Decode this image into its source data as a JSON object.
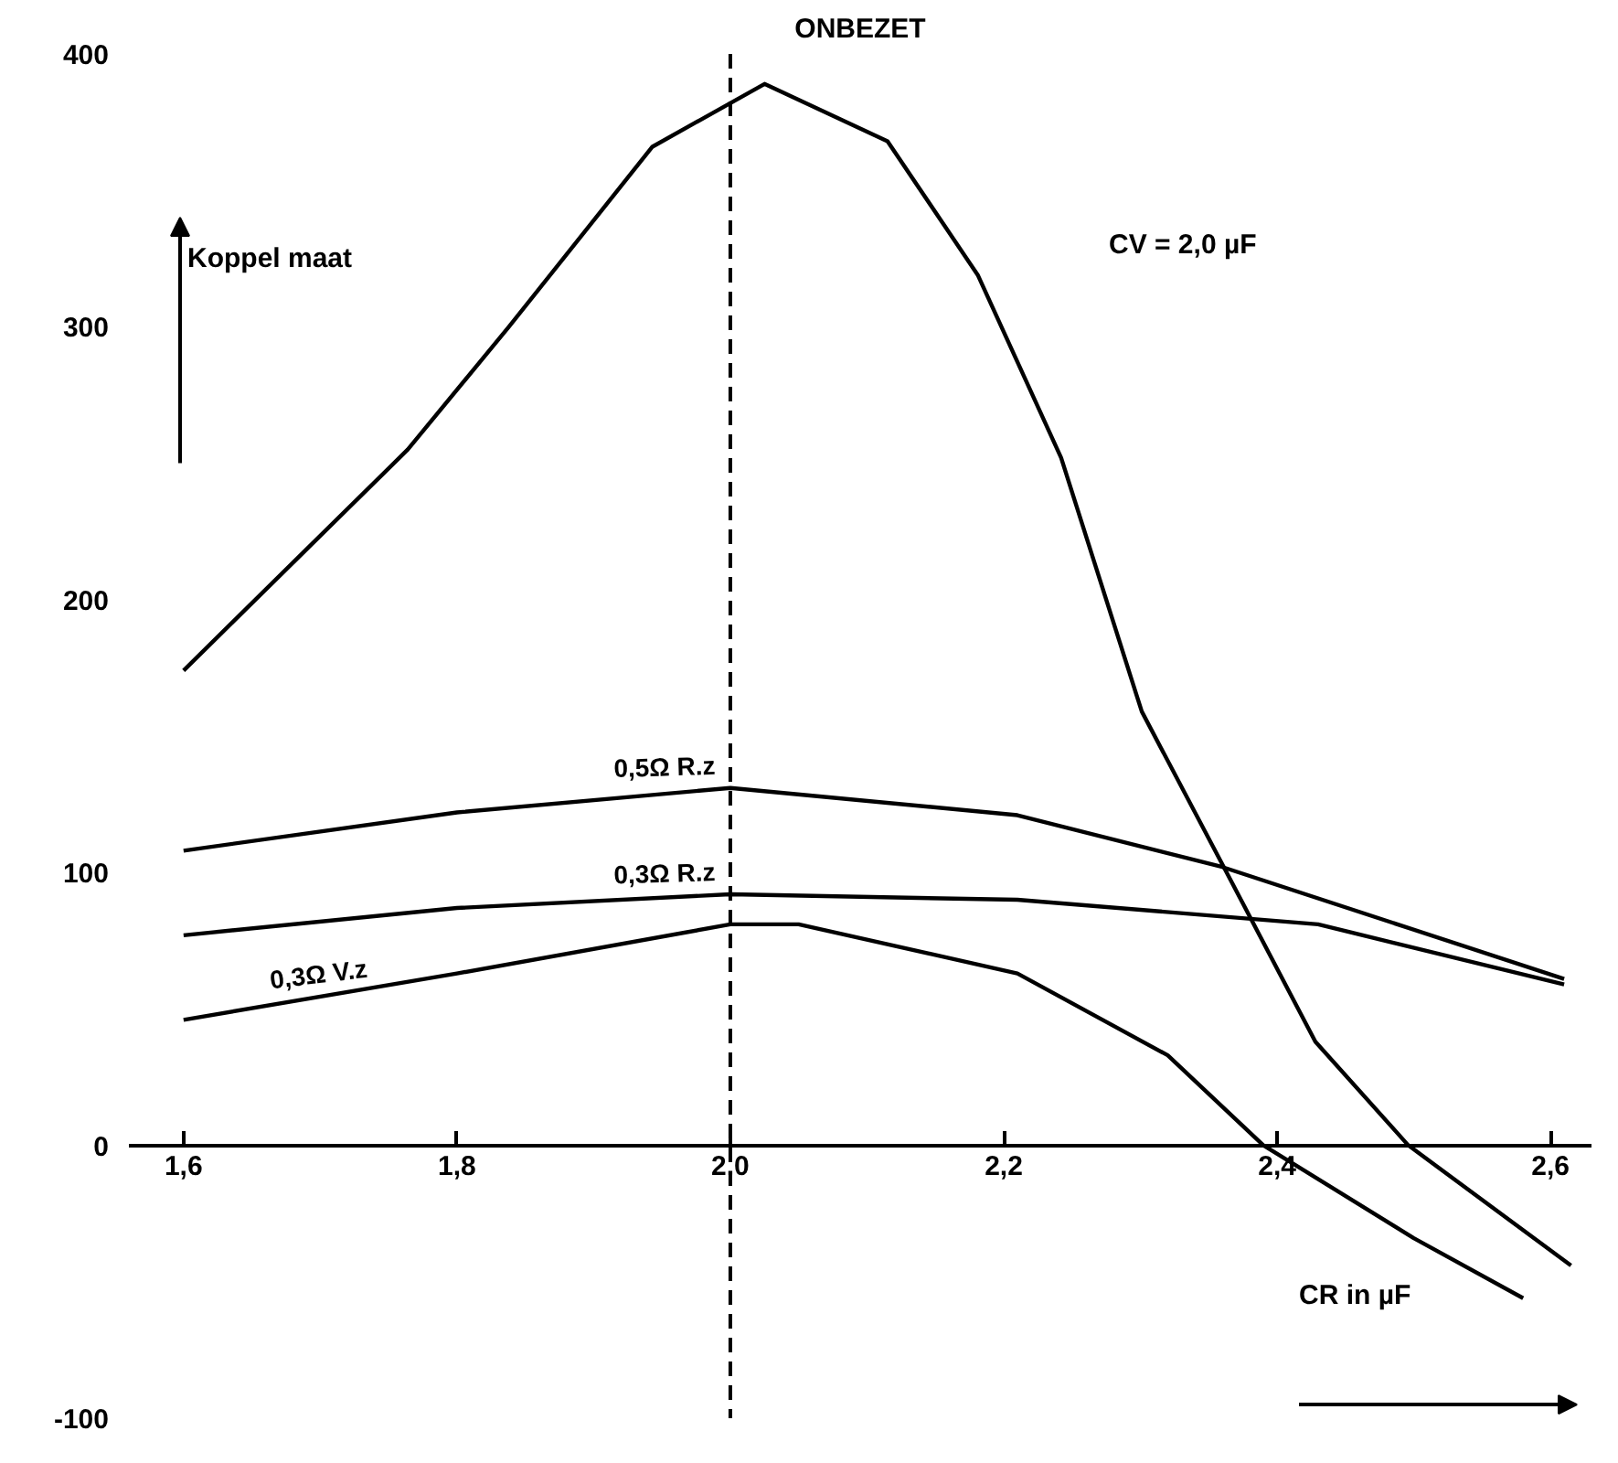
{
  "chart_data": {
    "type": "line",
    "title": "ONBEZET",
    "xlabel": "CR in µF",
    "ylabel": "Koppel maat",
    "annotations": [
      "CV = 2,0 µF"
    ],
    "xlim": [
      1.56,
      2.63
    ],
    "ylim": [
      -100,
      400
    ],
    "xticks": [
      {
        "value": 1.6,
        "label": "1,6"
      },
      {
        "value": 1.8,
        "label": "1,8"
      },
      {
        "value": 2.0,
        "label": "2,0"
      },
      {
        "value": 2.2,
        "label": "2,2"
      },
      {
        "value": 2.4,
        "label": "2,4"
      },
      {
        "value": 2.6,
        "label": "2,6"
      }
    ],
    "yticks": [
      -100,
      0,
      100,
      200,
      300,
      400
    ],
    "grid": false,
    "marker": "none",
    "line_style": "solid",
    "ref_lines": [
      {
        "axis": "x",
        "value": 2.0,
        "line_style": "dashed",
        "color": "#000000"
      }
    ],
    "series": [
      {
        "color": "#000000",
        "x": [
          1.6,
          1.689,
          1.764,
          1.838,
          1.943,
          2.025,
          2.115,
          2.181,
          2.242,
          2.301,
          2.361,
          2.428,
          2.496,
          2.615
        ],
        "values": [
          174,
          218,
          255,
          300,
          366,
          389,
          368,
          319,
          252,
          159,
          102,
          38,
          0,
          -44
        ]
      },
      {
        "name": "0,5Ω R.z",
        "color": "#000000",
        "x": [
          1.6,
          1.8,
          2.0,
          2.21,
          2.36,
          2.61
        ],
        "values": [
          108,
          122,
          131,
          121,
          102,
          61
        ]
      },
      {
        "name": "0,3Ω R.z",
        "color": "#000000",
        "x": [
          1.6,
          1.8,
          2.0,
          2.21,
          2.43,
          2.61
        ],
        "values": [
          77,
          87,
          92,
          90,
          81,
          59
        ]
      },
      {
        "name": "0,3Ω V.z",
        "color": "#000000",
        "x": [
          1.6,
          1.8,
          2.0,
          2.05,
          2.21,
          2.32,
          2.39,
          2.5,
          2.58
        ],
        "values": [
          46,
          63,
          81,
          81,
          63,
          33,
          0,
          -34,
          -56
        ]
      }
    ]
  }
}
